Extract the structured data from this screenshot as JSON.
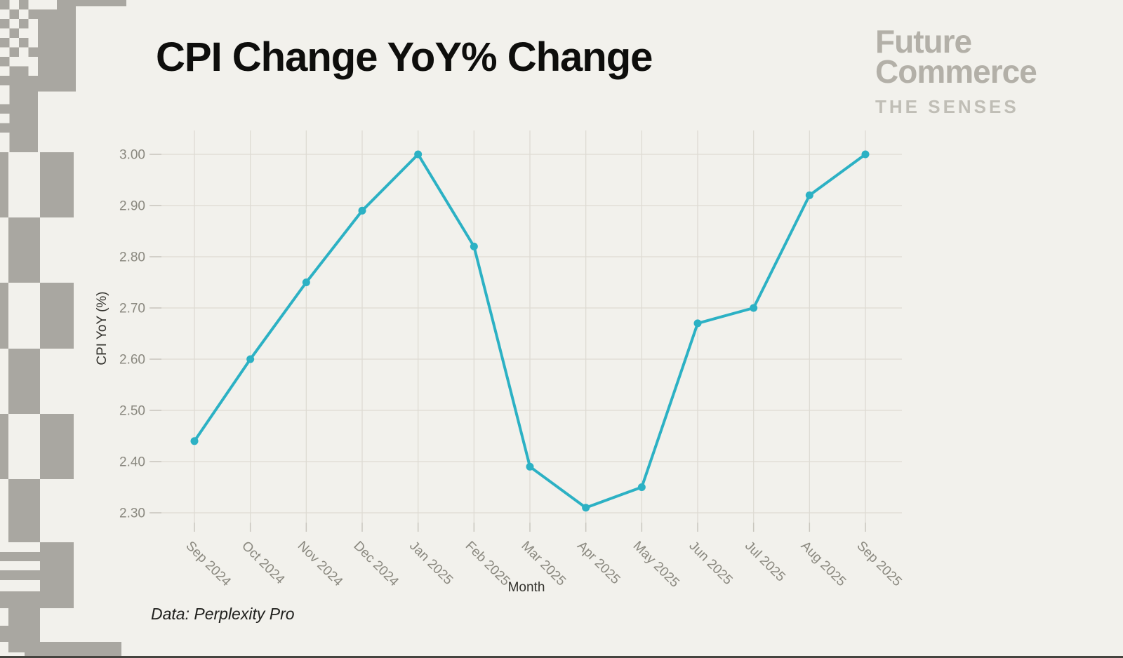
{
  "page": {
    "background": "#f2f1ec",
    "bottom_bar_color": "#45443f",
    "title": "CPI Change YoY% Change"
  },
  "branding": {
    "logo_line1": "Future",
    "logo_line2": "Commerce",
    "tagline": "THE SENSES",
    "logo_color": "#b3b0a8",
    "tagline_color": "#c0beb6"
  },
  "source_note": "Data: Perplexity Pro",
  "chart_data": {
    "type": "line",
    "title": "CPI Change YoY% Change",
    "xlabel": "Month",
    "ylabel": "CPI YoY (%)",
    "categories": [
      "Sep 2024",
      "Oct 2024",
      "Nov 2024",
      "Dec 2024",
      "Jan 2025",
      "Feb 2025",
      "Mar 2025",
      "Apr 2025",
      "May 2025",
      "Jun 2025",
      "Jul 2025",
      "Aug 2025",
      "Sep 2025"
    ],
    "values": [
      2.44,
      2.6,
      2.75,
      2.89,
      3.0,
      2.82,
      2.39,
      2.31,
      2.35,
      2.67,
      2.7,
      2.92,
      3.0
    ],
    "ytick_values": [
      2.3,
      2.4,
      2.5,
      2.6,
      2.7,
      2.8,
      2.9,
      3.0
    ],
    "ytick_labels": [
      "2.30",
      "2.40",
      "2.50",
      "2.60",
      "2.70",
      "2.80",
      "2.90",
      "3.00"
    ],
    "ylim": [
      2.3,
      3.0
    ],
    "grid": true,
    "legend_position": "none",
    "line_color": "#2cb1c4",
    "marker": "circle",
    "gridline_color": "#dedbd3",
    "tick_color": "#c9c6be",
    "tick_label_color": "#8a887f"
  },
  "decor": {
    "pattern_color": "#a9a7a1",
    "rects": [
      [
        108,
        0,
        72,
        9
      ],
      [
        0,
        0,
        13.5,
        13.5
      ],
      [
        27,
        0,
        13.5,
        13.5
      ],
      [
        81,
        0,
        27,
        13.5
      ],
      [
        54,
        13.5,
        54,
        117
      ],
      [
        13.5,
        13.5,
        13.5,
        13.5
      ],
      [
        40.5,
        13.5,
        13.5,
        13.5
      ],
      [
        0,
        27,
        13.5,
        13.5
      ],
      [
        27,
        27,
        13.5,
        13.5
      ],
      [
        13.5,
        40.5,
        13.5,
        13.5
      ],
      [
        0,
        54,
        13.5,
        13.5
      ],
      [
        27,
        54,
        13.5,
        13.5
      ],
      [
        13.5,
        67.5,
        13.5,
        13.5
      ],
      [
        40.5,
        67.5,
        13.5,
        13.5
      ],
      [
        0,
        81,
        13.5,
        13.5
      ],
      [
        13.5,
        94.5,
        27,
        13.5
      ],
      [
        0,
        108,
        13.5,
        13.5
      ],
      [
        13.5,
        108,
        40.5,
        13.5
      ],
      [
        13.5,
        121.5,
        40.5,
        95.5
      ],
      [
        0,
        148.5,
        13.5,
        13.5
      ],
      [
        0,
        175.5,
        13.5,
        13.5
      ],
      [
        0,
        217,
        12,
        93
      ],
      [
        57,
        217,
        48,
        93
      ],
      [
        12,
        310,
        45,
        93
      ],
      [
        0,
        403,
        12,
        94
      ],
      [
        57,
        403,
        48,
        94
      ],
      [
        12,
        497,
        45,
        93
      ],
      [
        0,
        590,
        12,
        93
      ],
      [
        57,
        590,
        48,
        93
      ],
      [
        12,
        683,
        45,
        90
      ],
      [
        57,
        773,
        48,
        94
      ],
      [
        0,
        787,
        57,
        13
      ],
      [
        0,
        813,
        57,
        14
      ],
      [
        0,
        843,
        57,
        24
      ],
      [
        12,
        867,
        45,
        63
      ],
      [
        0,
        892,
        12,
        23
      ],
      [
        35,
        915,
        138,
        23
      ]
    ]
  }
}
